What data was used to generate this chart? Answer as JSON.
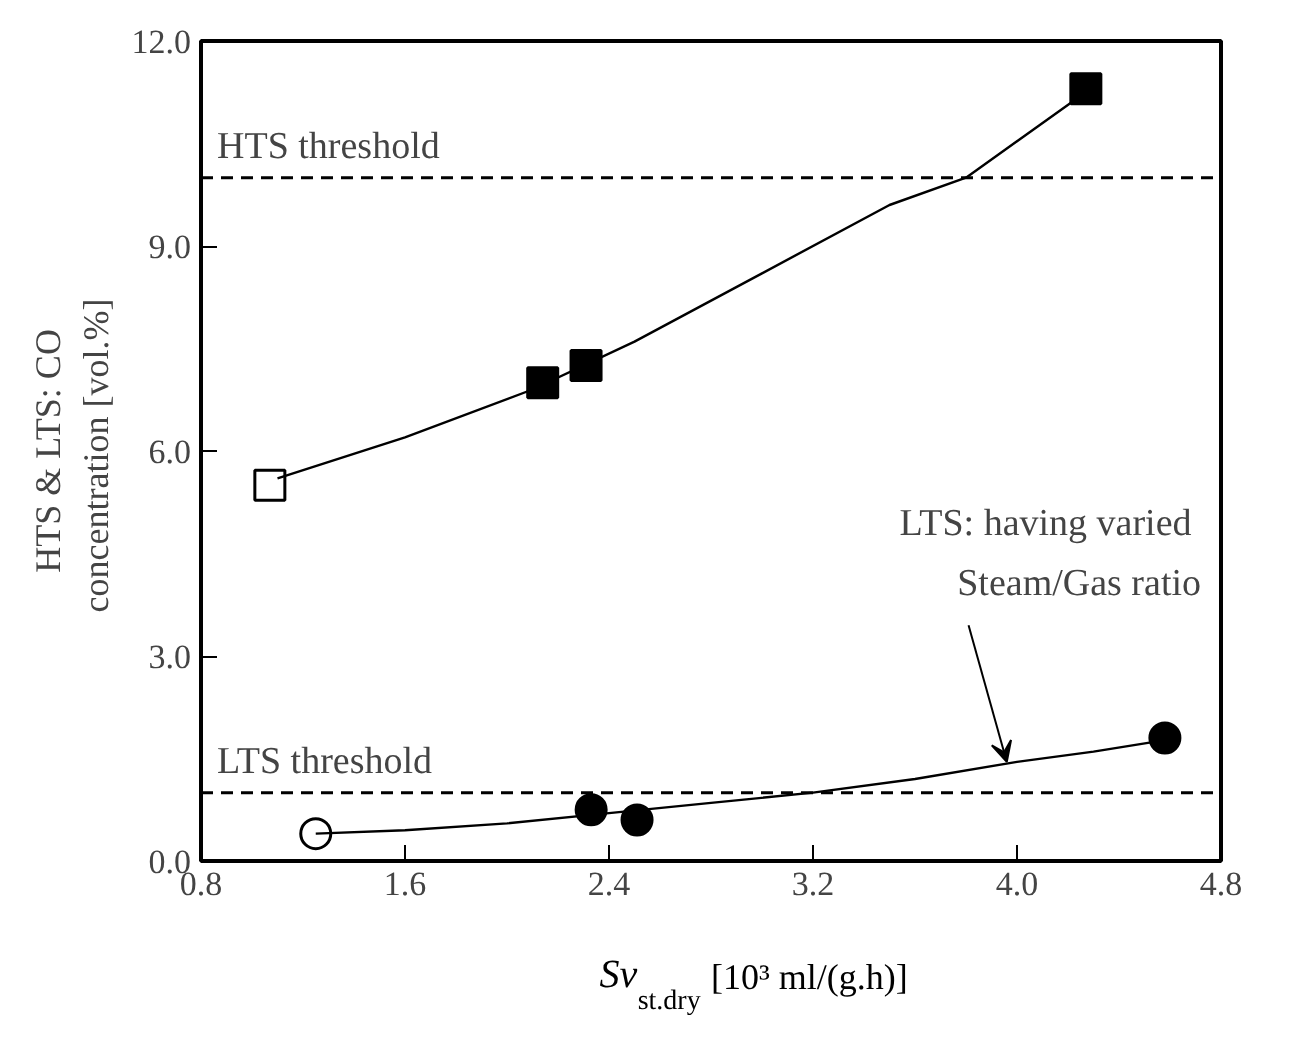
{
  "chart_data": {
    "type": "scatter",
    "xlabel": "Sv$_{st.dry}$  [10³ ml/(g.h)]",
    "ylabel": "HTS & LTS: CO\nconcentration  [vol.%]",
    "xlim": [
      0.8,
      4.8
    ],
    "ylim": [
      0,
      12
    ],
    "xticks": [
      0.8,
      1.6,
      2.4,
      3.2,
      {
        "value": 4.0,
        "label": "4.0"
      },
      4.8
    ],
    "yticks": [
      {
        "value": 0,
        "label": "0.0"
      },
      {
        "value": 3,
        "label": "3.0"
      },
      {
        "value": 6,
        "label": "6.0"
      },
      {
        "value": 9,
        "label": "9.0"
      },
      {
        "value": 12,
        "label": "12.0"
      }
    ],
    "grid": false,
    "series": [
      {
        "marker": "square",
        "color": "#000000",
        "colors": [
          "#ffffff",
          "#000000",
          "#000000",
          "#000000"
        ],
        "x": [
          1.07,
          2.14,
          2.31,
          4.27
        ],
        "values": [
          5.5,
          7.0,
          7.25,
          11.3
        ]
      },
      {
        "marker": "circle",
        "color": "#000000",
        "colors": [
          "#ffffff",
          "#000000",
          "#000000",
          "#000000"
        ],
        "x": [
          1.25,
          2.33,
          2.51,
          4.58
        ],
        "values": [
          0.4,
          0.75,
          0.6,
          1.8
        ]
      },
      {
        "type": "line",
        "marker": "none",
        "line_style": "solid",
        "color": "#000000",
        "x": [
          1.1,
          1.6,
          2.1,
          2.5,
          3.0,
          3.5,
          3.8,
          4.25
        ],
        "values": [
          5.6,
          6.2,
          6.9,
          7.6,
          8.6,
          9.6,
          10.0,
          11.2
        ]
      },
      {
        "type": "line",
        "marker": "none",
        "line_style": "solid",
        "color": "#000000",
        "x": [
          1.25,
          1.6,
          2.0,
          2.4,
          2.8,
          3.2,
          3.6,
          4.0,
          4.3,
          4.55
        ],
        "values": [
          0.4,
          0.45,
          0.55,
          0.7,
          0.85,
          1.0,
          1.2,
          1.45,
          1.6,
          1.75
        ]
      }
    ],
    "ref_lines": [
      {
        "axis": "y",
        "value": 10,
        "label": "HTS threshold",
        "color": "#000000",
        "line_style": "dashed"
      },
      {
        "axis": "y",
        "value": 1,
        "label": "LTS threshold",
        "color": "#000000",
        "line_style": "dashed"
      }
    ],
    "annotations": [
      {
        "text": "LTS:  having varied\nSteam/Gas ratio",
        "x": 3.96,
        "y": 1.45
      }
    ]
  }
}
